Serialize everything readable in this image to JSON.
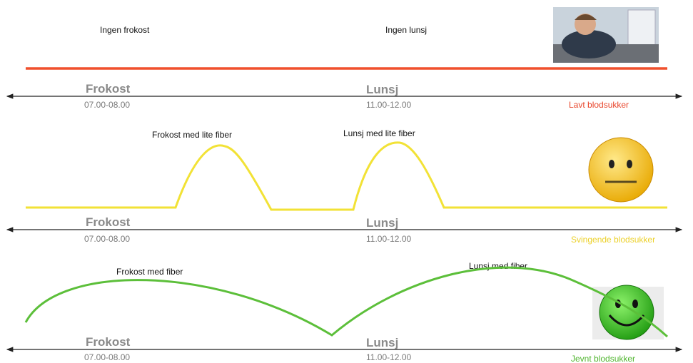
{
  "panels": [
    {
      "annotations": [
        "Ingen frokost",
        "Ingen lunsj"
      ],
      "timeline": {
        "breakfast": "Frokost",
        "breakfast_time": "07.00-08.00",
        "lunch": "Lunsj",
        "lunch_time": "11.00-12.00"
      },
      "status": "Lavt blodsukker"
    },
    {
      "annotations": [
        "Frokost med lite fiber",
        "Lunsj med lite fiber"
      ],
      "timeline": {
        "breakfast": "Frokost",
        "breakfast_time": "07.00-08.00",
        "lunch": "Lunsj",
        "lunch_time": "11.00-12.00"
      },
      "status": "Svingende blodsukker"
    },
    {
      "annotations": [
        "Frokost med fiber",
        "Lunsj med fiber"
      ],
      "timeline": {
        "breakfast": "Frokost",
        "breakfast_time": "07.00-08.00",
        "lunch": "Lunsj",
        "lunch_time": "11.00-12.00"
      },
      "status": "Jevnt blodsukker"
    }
  ]
}
